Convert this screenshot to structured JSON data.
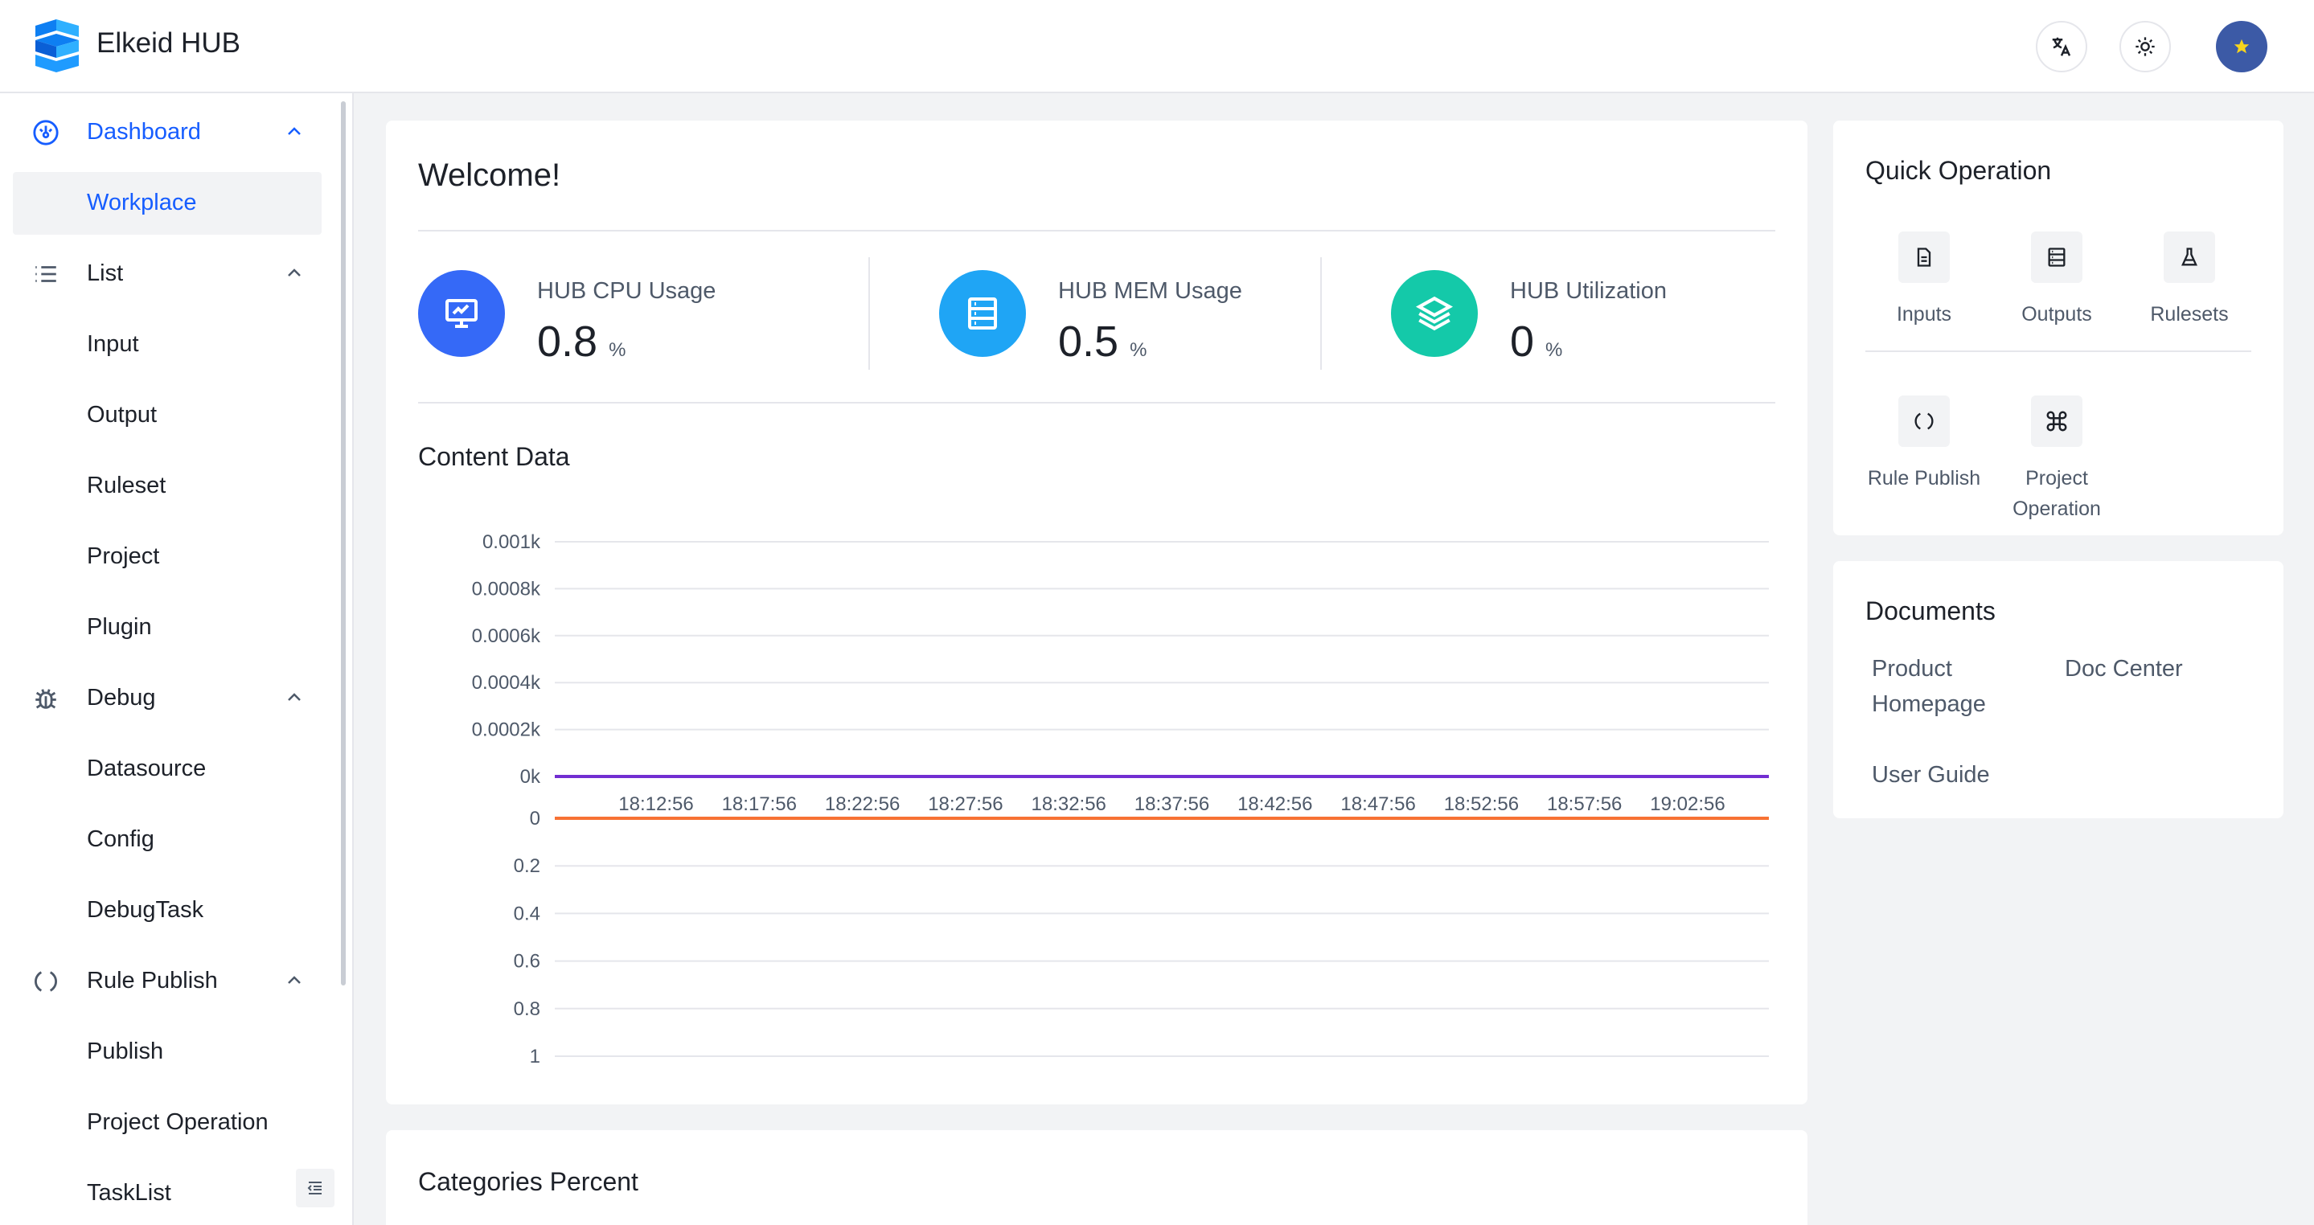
{
  "app": {
    "title": "Elkeid HUB"
  },
  "header": {
    "translate_icon": "translate-icon",
    "theme_icon": "sun-icon",
    "avatar_icon": "star-icon"
  },
  "sidebar": {
    "items": [
      {
        "label": "Dashboard",
        "icon": "dashboard-icon",
        "group": true,
        "expanded": true
      },
      {
        "label": "Workplace",
        "selected": true
      },
      {
        "label": "List",
        "icon": "list-icon",
        "group": true,
        "expanded": true
      },
      {
        "label": "Input"
      },
      {
        "label": "Output"
      },
      {
        "label": "Ruleset"
      },
      {
        "label": "Project"
      },
      {
        "label": "Plugin"
      },
      {
        "label": "Debug",
        "icon": "bug-icon",
        "group": true,
        "expanded": true
      },
      {
        "label": "Datasource"
      },
      {
        "label": "Config"
      },
      {
        "label": "DebugTask"
      },
      {
        "label": "Rule Publish",
        "icon": "sync-icon",
        "group": true,
        "expanded": true
      },
      {
        "label": "Publish"
      },
      {
        "label": "Project Operation"
      },
      {
        "label": "TaskList"
      }
    ]
  },
  "welcome": {
    "title": "Welcome!",
    "stats": [
      {
        "title": "HUB CPU Usage",
        "value": "0.8",
        "unit": "%",
        "icon": "monitor-icon",
        "color": "#3569f7"
      },
      {
        "title": "HUB MEM Usage",
        "value": "0.5",
        "unit": "%",
        "icon": "storage-icon",
        "color": "#1fa5f5"
      },
      {
        "title": "HUB Utilization",
        "value": "0",
        "unit": "%",
        "icon": "layers-icon",
        "color": "#14c9a9"
      }
    ],
    "content_title": "Content Data"
  },
  "chart_data": {
    "type": "line",
    "title": "Content Data",
    "x": [
      "18:12:56",
      "18:17:56",
      "18:22:56",
      "18:27:56",
      "18:32:56",
      "18:37:56",
      "18:42:56",
      "18:47:56",
      "18:52:56",
      "18:57:56",
      "19:02:56"
    ],
    "upper_axis": {
      "ticks": [
        "0.001k",
        "0.0008k",
        "0.0006k",
        "0.0004k",
        "0.0002k",
        "0k"
      ],
      "ylim": [
        0,
        0.001
      ]
    },
    "lower_axis": {
      "ticks": [
        "0",
        "0.2",
        "0.4",
        "0.6",
        "0.8",
        "1"
      ],
      "ylim": [
        0,
        1
      ],
      "inverted": true
    },
    "series": [
      {
        "axis": "upper",
        "values": [
          0,
          0,
          0,
          0,
          0,
          0,
          0,
          0,
          0,
          0,
          0
        ],
        "color": "#722ed1"
      },
      {
        "axis": "lower",
        "values": [
          0,
          0,
          0,
          0,
          0,
          0,
          0,
          0,
          0,
          0,
          0
        ],
        "color": "#f77234"
      }
    ],
    "grid": true
  },
  "quick_operation": {
    "title": "Quick Operation",
    "items": [
      {
        "label": "Inputs",
        "icon": "file-icon"
      },
      {
        "label": "Outputs",
        "icon": "storage-icon"
      },
      {
        "label": "Rulesets",
        "icon": "experiment-icon"
      },
      {
        "label": "Rule Publish",
        "icon": "sync-icon"
      },
      {
        "label": "Project Operation",
        "icon": "command-icon"
      }
    ]
  },
  "documents": {
    "title": "Documents",
    "links": [
      "Product Homepage",
      "Doc Center",
      "User Guide"
    ]
  },
  "categories": {
    "title": "Categories Percent"
  }
}
